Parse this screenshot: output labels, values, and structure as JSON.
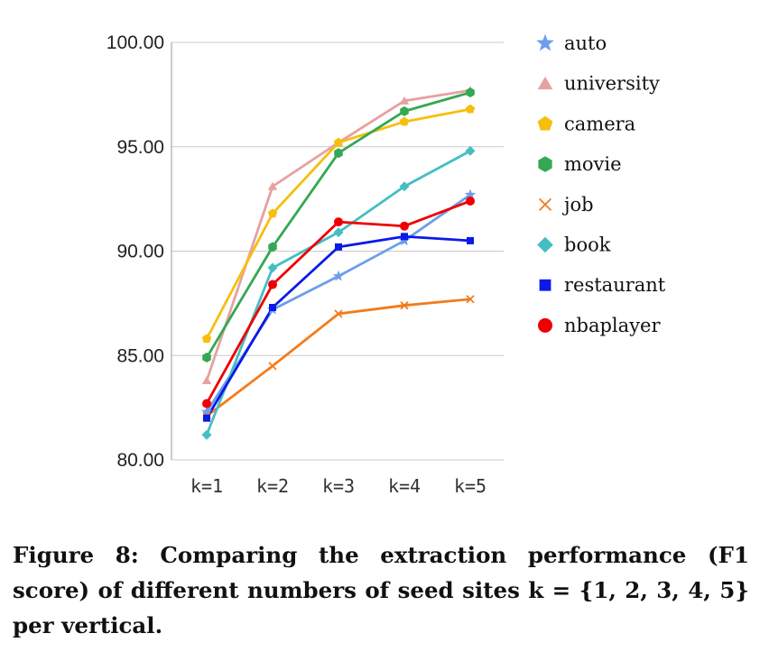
{
  "chart_data": {
    "type": "line",
    "categories": [
      "k=1",
      "k=2",
      "k=3",
      "k=4",
      "k=5"
    ],
    "y_ticks": [
      "80.00",
      "85.00",
      "90.00",
      "95.00",
      "100.00"
    ],
    "ylim": [
      80,
      100
    ],
    "grid": true,
    "legend_position": "right",
    "series": [
      {
        "name": "auto",
        "color": "#6d9eeb",
        "marker": "star",
        "values": [
          82.3,
          87.2,
          88.8,
          90.5,
          92.7
        ]
      },
      {
        "name": "university",
        "color": "#e6a1a1",
        "marker": "triangle",
        "values": [
          83.8,
          93.1,
          95.2,
          97.2,
          97.7
        ]
      },
      {
        "name": "camera",
        "color": "#f6bf0e",
        "marker": "pentagon",
        "values": [
          85.8,
          91.8,
          95.2,
          96.2,
          96.8
        ]
      },
      {
        "name": "movie",
        "color": "#34a853",
        "marker": "hexagon",
        "values": [
          84.9,
          90.2,
          94.7,
          96.7,
          97.6
        ]
      },
      {
        "name": "job",
        "color": "#f37b1a",
        "marker": "x",
        "values": [
          82.1,
          84.5,
          87.0,
          87.4,
          87.7
        ]
      },
      {
        "name": "book",
        "color": "#45bec3",
        "marker": "diamond",
        "values": [
          81.2,
          89.2,
          90.9,
          93.1,
          94.8
        ]
      },
      {
        "name": "restaurant",
        "color": "#0b19e8",
        "marker": "square",
        "values": [
          82.0,
          87.3,
          90.2,
          90.7,
          90.5
        ]
      },
      {
        "name": "nbaplayer",
        "color": "#ee0000",
        "marker": "circle",
        "values": [
          82.7,
          88.4,
          91.4,
          91.2,
          92.4
        ]
      }
    ]
  },
  "caption": {
    "text": "Figure 8: Comparing the extraction performance (F1 score) of different numbers of seed sites k = {1, 2, 3, 4, 5} per vertical."
  }
}
